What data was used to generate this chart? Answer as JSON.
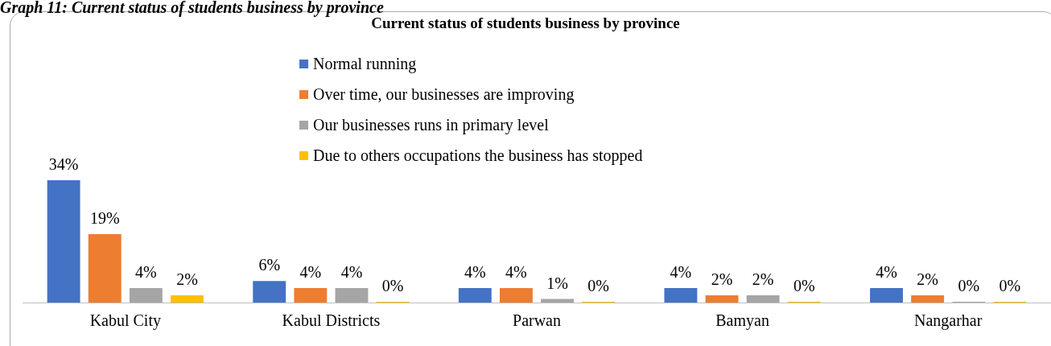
{
  "chart_data": {
    "type": "bar",
    "title": "Current status of students business by province",
    "annotations": [
      "Graph 11: Current status of students business by province"
    ],
    "categories": [
      "Kabul City",
      "Kabul Districts",
      "Parwan",
      "Bamyan",
      "Nangarhar"
    ],
    "series": [
      {
        "name": "Normal running",
        "color": "#4472c4",
        "values": [
          34,
          6,
          4,
          4,
          4
        ],
        "value_labels": [
          "34%",
          "6%",
          "4%",
          "4%",
          "4%"
        ]
      },
      {
        "name": "Over time, our businesses are improving",
        "color": "#ed7d31",
        "values": [
          19,
          4,
          4,
          2,
          2
        ],
        "value_labels": [
          "19%",
          "4%",
          "4%",
          "2%",
          "2%"
        ]
      },
      {
        "name": "Our businesses runs in primary level",
        "color": "#a5a5a5",
        "values": [
          4,
          4,
          1,
          2,
          0
        ],
        "value_labels": [
          "4%",
          "4%",
          "1%",
          "2%",
          "0%"
        ]
      },
      {
        "name": "Due to others occupations the business has stopped",
        "color": "#ffc000",
        "values": [
          2,
          0,
          0,
          0,
          0
        ],
        "value_labels": [
          "2%",
          "0%",
          "0%",
          "0%",
          "0%"
        ]
      }
    ],
    "legend": "top",
    "grid": false
  }
}
